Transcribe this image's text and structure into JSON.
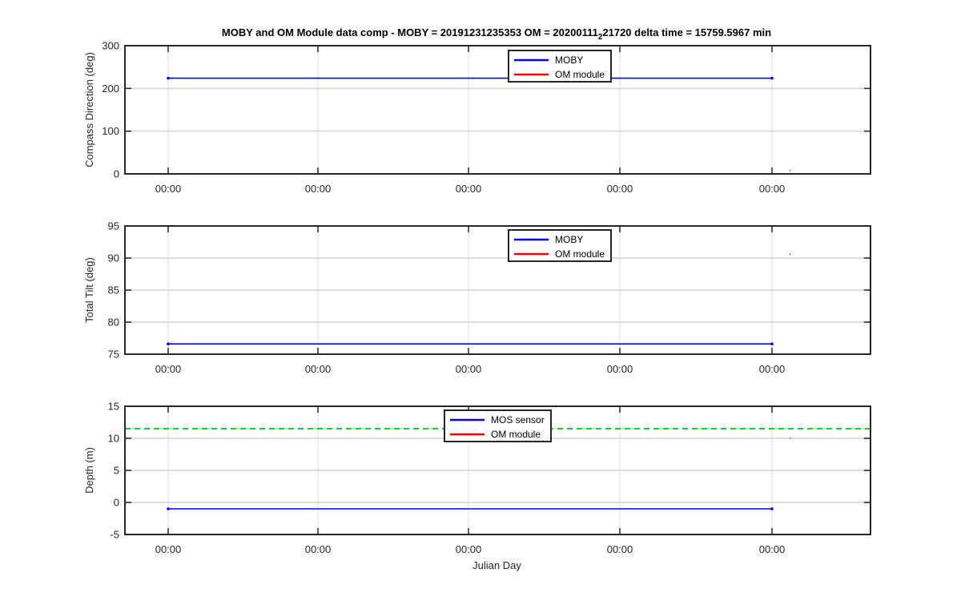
{
  "figure_title": {
    "main": "MOBY and OM Module data comp - MOBY = 20191231235353 OM = 20200111",
    "subscript": "2",
    "tail": "21720 delta time = 15759.5967 min"
  },
  "chart_data": [
    {
      "type": "line",
      "ylabel": "Compass Direction (deg)",
      "xlabel": "",
      "ylim": [
        0,
        300
      ],
      "yticks": [
        0,
        100,
        200,
        300
      ],
      "xtick_labels": [
        "00:00",
        "00:00",
        "00:00",
        "00:00",
        "00:00"
      ],
      "grid": true,
      "legend": {
        "position": "top-center",
        "entries": [
          "MOBY",
          "OM module"
        ]
      },
      "series": [
        {
          "name": "MOBY",
          "color": "#0000ff",
          "x": [
            0,
            4
          ],
          "y": [
            224,
            224
          ]
        },
        {
          "name": "OM module",
          "color": "#ff0000",
          "x": [
            4.12
          ],
          "y": [
            8
          ]
        }
      ]
    },
    {
      "type": "line",
      "ylabel": "Total Tilt (deg)",
      "xlabel": "",
      "ylim": [
        75,
        95
      ],
      "yticks": [
        75,
        80,
        85,
        90,
        95
      ],
      "xtick_labels": [
        "00:00",
        "00:00",
        "00:00",
        "00:00",
        "00:00"
      ],
      "grid": true,
      "legend": {
        "position": "top-center",
        "entries": [
          "MOBY",
          "OM module"
        ]
      },
      "series": [
        {
          "name": "MOBY",
          "color": "#0000ff",
          "x": [
            0,
            4
          ],
          "y": [
            76.6,
            76.6
          ]
        },
        {
          "name": "OM module",
          "color": "#ff0000",
          "x": [
            4.12
          ],
          "y": [
            90.6
          ]
        }
      ]
    },
    {
      "type": "line",
      "ylabel": "Depth (m)",
      "xlabel": "Julian Day",
      "ylim": [
        -5,
        15
      ],
      "yticks": [
        -5,
        0,
        5,
        10,
        15
      ],
      "xtick_labels": [
        "00:00",
        "00:00",
        "00:00",
        "00:00",
        "00:00"
      ],
      "grid": true,
      "legend": {
        "position": "top-center",
        "entries": [
          "MOS sensor",
          "OM module"
        ]
      },
      "reference_line": {
        "color": "#00dd00",
        "y": 11.5
      },
      "series": [
        {
          "name": "MOS sensor",
          "color": "#0000ff",
          "x": [
            0,
            4
          ],
          "y": [
            -1,
            -1
          ]
        },
        {
          "name": "OM module",
          "color": "#ff0000",
          "x": [
            4.12
          ],
          "y": [
            10
          ]
        }
      ]
    }
  ]
}
